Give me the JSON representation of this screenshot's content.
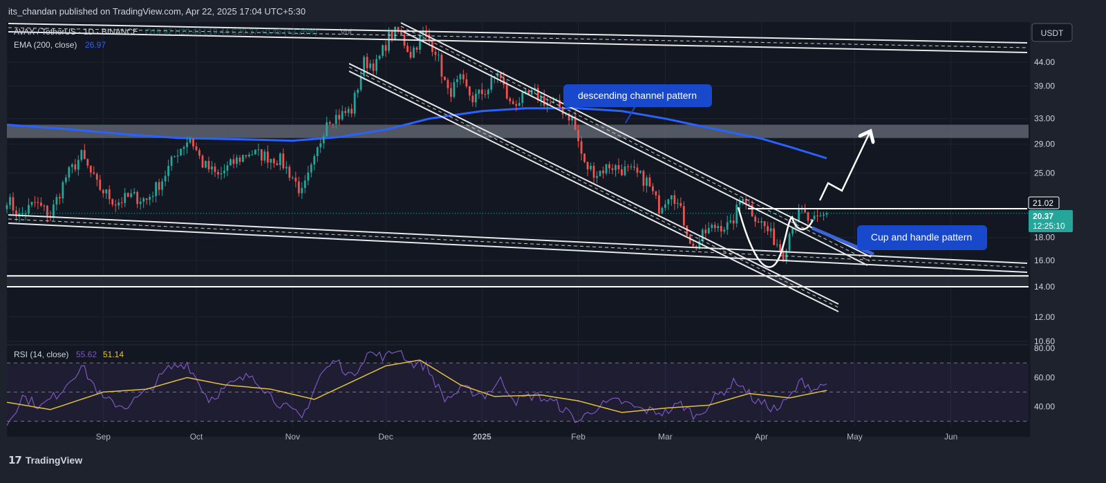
{
  "header": {
    "published": "its_chandan published on TradingView.com, Apr 22, 2025 17:04 UTC+5:30"
  },
  "footer": {
    "logo_text": "TradingView"
  },
  "legend": {
    "symbol": "AVAX / TetherUS · 1D · BINANCE",
    "ohlc": "O19.92 H20.44 L19.44 C20.37 +0.45 (+2.26%)",
    "volume_label": "Vol",
    "ema_label": "EMA (200, close)",
    "ema_value": "26.97",
    "rsi_label": "RSI (14, close)",
    "rsi_value": "55.62",
    "rsi_ma_value": "51.14"
  },
  "currency_badge": "USDT",
  "annotations": {
    "channel": "descending channel pattern",
    "cup": "Cup and handle pattern"
  },
  "price_badges": {
    "resistance": "21.02",
    "last": "20.37",
    "countdown": "12:25:10"
  },
  "colors": {
    "background": "#131722",
    "up": "#26a69a",
    "down": "#ef5350",
    "ema": "#2962ff",
    "rsi": "#7e57c2",
    "rsi_ma": "#e6c13b",
    "callout": "#1848cc",
    "last_price": "#26a69a"
  },
  "chart_data": [
    {
      "type": "candlestick",
      "title": "AVAX / TetherUS · 1D · BINANCE",
      "scale": "log",
      "y_ticks": [
        44.0,
        39.0,
        33.0,
        29.0,
        25.0,
        21.02,
        20.37,
        18.0,
        16.0,
        14.0,
        12.0,
        10.6
      ],
      "y_tick_labels": [
        "44.00",
        "39.00",
        "33.00",
        "29.00",
        "25.00",
        "21.02",
        "20.37",
        "18.00",
        "16.00",
        "14.00",
        "12.00",
        "10.60"
      ],
      "ylim": [
        10.6,
        54
      ],
      "x_ticks": [
        "Sep",
        "Oct",
        "Nov",
        "Dec",
        "2025",
        "Feb",
        "Mar",
        "Apr",
        "May",
        "Jun"
      ],
      "x_tick_dates": [
        "2024-09-01",
        "2024-10-01",
        "2024-11-01",
        "2024-12-01",
        "2025-01-01",
        "2025-02-01",
        "2025-03-01",
        "2025-04-01",
        "2025-05-01",
        "2025-06-01"
      ],
      "x_range": [
        "2024-08-01",
        "2025-06-26"
      ],
      "close_path": [
        [
          "2024-08-01",
          22.0
        ],
        [
          "2024-08-05",
          20.0
        ],
        [
          "2024-08-10",
          21.5
        ],
        [
          "2024-08-15",
          20.2
        ],
        [
          "2024-08-20",
          24.5
        ],
        [
          "2024-08-25",
          27.3
        ],
        [
          "2024-08-30",
          23.5
        ],
        [
          "2024-09-05",
          21.5
        ],
        [
          "2024-09-10",
          22.2
        ],
        [
          "2024-09-15",
          21.8
        ],
        [
          "2024-09-20",
          24.2
        ],
        [
          "2024-09-25",
          28.0
        ],
        [
          "2024-09-29",
          30.0
        ],
        [
          "2024-10-03",
          26.2
        ],
        [
          "2024-10-08",
          24.6
        ],
        [
          "2024-10-13",
          26.4
        ],
        [
          "2024-10-18",
          27.8
        ],
        [
          "2024-10-23",
          27.3
        ],
        [
          "2024-10-28",
          26.7
        ],
        [
          "2024-11-01",
          24.5
        ],
        [
          "2024-11-04",
          22.5
        ],
        [
          "2024-11-08",
          26.5
        ],
        [
          "2024-11-12",
          33.0
        ],
        [
          "2024-11-16",
          33.5
        ],
        [
          "2024-11-20",
          34.5
        ],
        [
          "2024-11-24",
          44.0
        ],
        [
          "2024-11-28",
          43.5
        ],
        [
          "2024-12-02",
          50.0
        ],
        [
          "2024-12-05",
          51.5
        ],
        [
          "2024-12-09",
          46.0
        ],
        [
          "2024-12-13",
          51.0
        ],
        [
          "2024-12-17",
          47.0
        ],
        [
          "2024-12-21",
          37.5
        ],
        [
          "2024-12-25",
          40.0
        ],
        [
          "2024-12-29",
          36.5
        ],
        [
          "2025-01-03",
          38.5
        ],
        [
          "2025-01-06",
          42.0
        ],
        [
          "2025-01-10",
          35.5
        ],
        [
          "2025-01-14",
          36.5
        ],
        [
          "2025-01-18",
          37.5
        ],
        [
          "2025-01-22",
          35.8
        ],
        [
          "2025-01-26",
          35.0
        ],
        [
          "2025-01-30",
          33.0
        ],
        [
          "2025-02-03",
          26.0
        ],
        [
          "2025-02-07",
          25.0
        ],
        [
          "2025-02-11",
          26.0
        ],
        [
          "2025-02-15",
          25.5
        ],
        [
          "2025-02-19",
          25.0
        ],
        [
          "2025-02-23",
          24.0
        ],
        [
          "2025-02-27",
          21.0
        ],
        [
          "2025-03-03",
          23.0
        ],
        [
          "2025-03-06",
          20.5
        ],
        [
          "2025-03-10",
          17.0
        ],
        [
          "2025-03-14",
          18.5
        ],
        [
          "2025-03-18",
          19.2
        ],
        [
          "2025-03-22",
          19.0
        ],
        [
          "2025-03-26",
          22.5
        ],
        [
          "2025-03-29",
          20.5
        ],
        [
          "2025-04-02",
          19.0
        ],
        [
          "2025-04-06",
          17.5
        ],
        [
          "2025-04-08",
          16.5
        ],
        [
          "2025-04-11",
          19.5
        ],
        [
          "2025-04-14",
          20.5
        ],
        [
          "2025-04-17",
          19.3
        ],
        [
          "2025-04-20",
          19.9
        ],
        [
          "2025-04-22",
          20.37
        ]
      ],
      "ema200": [
        [
          "2024-08-01",
          32.0
        ],
        [
          "2024-08-20",
          31.3
        ],
        [
          "2024-09-10",
          30.4
        ],
        [
          "2024-09-25",
          29.9
        ],
        [
          "2024-10-15",
          29.7
        ],
        [
          "2024-11-01",
          29.5
        ],
        [
          "2024-11-15",
          30.0
        ],
        [
          "2024-12-01",
          31.2
        ],
        [
          "2024-12-15",
          33.0
        ],
        [
          "2025-01-01",
          34.3
        ],
        [
          "2025-01-15",
          34.8
        ],
        [
          "2025-02-01",
          34.8
        ],
        [
          "2025-02-15",
          34.3
        ],
        [
          "2025-03-01",
          33.0
        ],
        [
          "2025-03-15",
          31.5
        ],
        [
          "2025-04-01",
          29.8
        ],
        [
          "2025-04-10",
          28.6
        ],
        [
          "2025-04-22",
          26.97
        ]
      ],
      "resistance_level": 21.02,
      "support_zone": [
        14.0,
        14.8
      ],
      "supply_zone": [
        29.9,
        32.0
      ],
      "projection": [
        [
          "2025-04-22",
          20.8
        ],
        [
          "2025-04-24",
          23.0
        ],
        [
          "2025-04-27",
          22.2
        ],
        [
          "2025-05-02",
          26.2
        ],
        [
          "2025-05-06",
          33.0
        ],
        [
          "2025-05-09",
          29.3
        ]
      ],
      "indicators": [
        "EMA (200, close) 26.97"
      ]
    },
    {
      "type": "line",
      "title": "RSI (14, close)",
      "ylim": [
        26,
        82
      ],
      "y_ticks": [
        40,
        60,
        80
      ],
      "y_tick_labels": [
        "40.00",
        "60.00",
        "80.00"
      ],
      "bands": [
        30,
        50,
        70
      ],
      "series": [
        {
          "name": "RSI",
          "last": 55.62,
          "points": [
            [
              "2024-08-01",
              28
            ],
            [
              "2024-08-06",
              47
            ],
            [
              "2024-08-12",
              40
            ],
            [
              "2024-08-18",
              50
            ],
            [
              "2024-08-25",
              68
            ],
            [
              "2024-09-01",
              45
            ],
            [
              "2024-09-08",
              40
            ],
            [
              "2024-09-15",
              50
            ],
            [
              "2024-09-22",
              66
            ],
            [
              "2024-09-28",
              70
            ],
            [
              "2024-10-05",
              45
            ],
            [
              "2024-10-12",
              55
            ],
            [
              "2024-10-19",
              62
            ],
            [
              "2024-10-26",
              45
            ],
            [
              "2024-11-04",
              32
            ],
            [
              "2024-11-10",
              62
            ],
            [
              "2024-11-15",
              72
            ],
            [
              "2024-11-20",
              60
            ],
            [
              "2024-11-25",
              77
            ],
            [
              "2024-12-01",
              74
            ],
            [
              "2024-12-05",
              80
            ],
            [
              "2024-12-09",
              70
            ],
            [
              "2024-12-14",
              68
            ],
            [
              "2024-12-20",
              45
            ],
            [
              "2024-12-26",
              52
            ],
            [
              "2025-01-02",
              48
            ],
            [
              "2025-01-07",
              58
            ],
            [
              "2025-01-12",
              44
            ],
            [
              "2025-01-18",
              48
            ],
            [
              "2025-01-25",
              42
            ],
            [
              "2025-02-01",
              30
            ],
            [
              "2025-02-07",
              40
            ],
            [
              "2025-02-14",
              44
            ],
            [
              "2025-02-21",
              38
            ],
            [
              "2025-03-01",
              36
            ],
            [
              "2025-03-06",
              42
            ],
            [
              "2025-03-11",
              33
            ],
            [
              "2025-03-17",
              46
            ],
            [
              "2025-03-24",
              58
            ],
            [
              "2025-03-30",
              44
            ],
            [
              "2025-04-06",
              38
            ],
            [
              "2025-04-10",
              46
            ],
            [
              "2025-04-14",
              58
            ],
            [
              "2025-04-18",
              52
            ],
            [
              "2025-04-22",
              55.62
            ]
          ]
        },
        {
          "name": "RSI MA",
          "last": 51.14,
          "points": [
            [
              "2024-08-01",
              43
            ],
            [
              "2024-08-15",
              38
            ],
            [
              "2024-09-01",
              50
            ],
            [
              "2024-09-15",
              52
            ],
            [
              "2024-09-28",
              60
            ],
            [
              "2024-10-10",
              55
            ],
            [
              "2024-10-25",
              52
            ],
            [
              "2024-11-08",
              45
            ],
            [
              "2024-11-18",
              55
            ],
            [
              "2024-12-01",
              68
            ],
            [
              "2024-12-12",
              72
            ],
            [
              "2024-12-25",
              55
            ],
            [
              "2025-01-05",
              47
            ],
            [
              "2025-01-20",
              48
            ],
            [
              "2025-02-01",
              44
            ],
            [
              "2025-02-15",
              36
            ],
            [
              "2025-03-01",
              39
            ],
            [
              "2025-03-15",
              41
            ],
            [
              "2025-03-28",
              49
            ],
            [
              "2025-04-10",
              46
            ],
            [
              "2025-04-22",
              51.14
            ]
          ]
        }
      ]
    }
  ]
}
